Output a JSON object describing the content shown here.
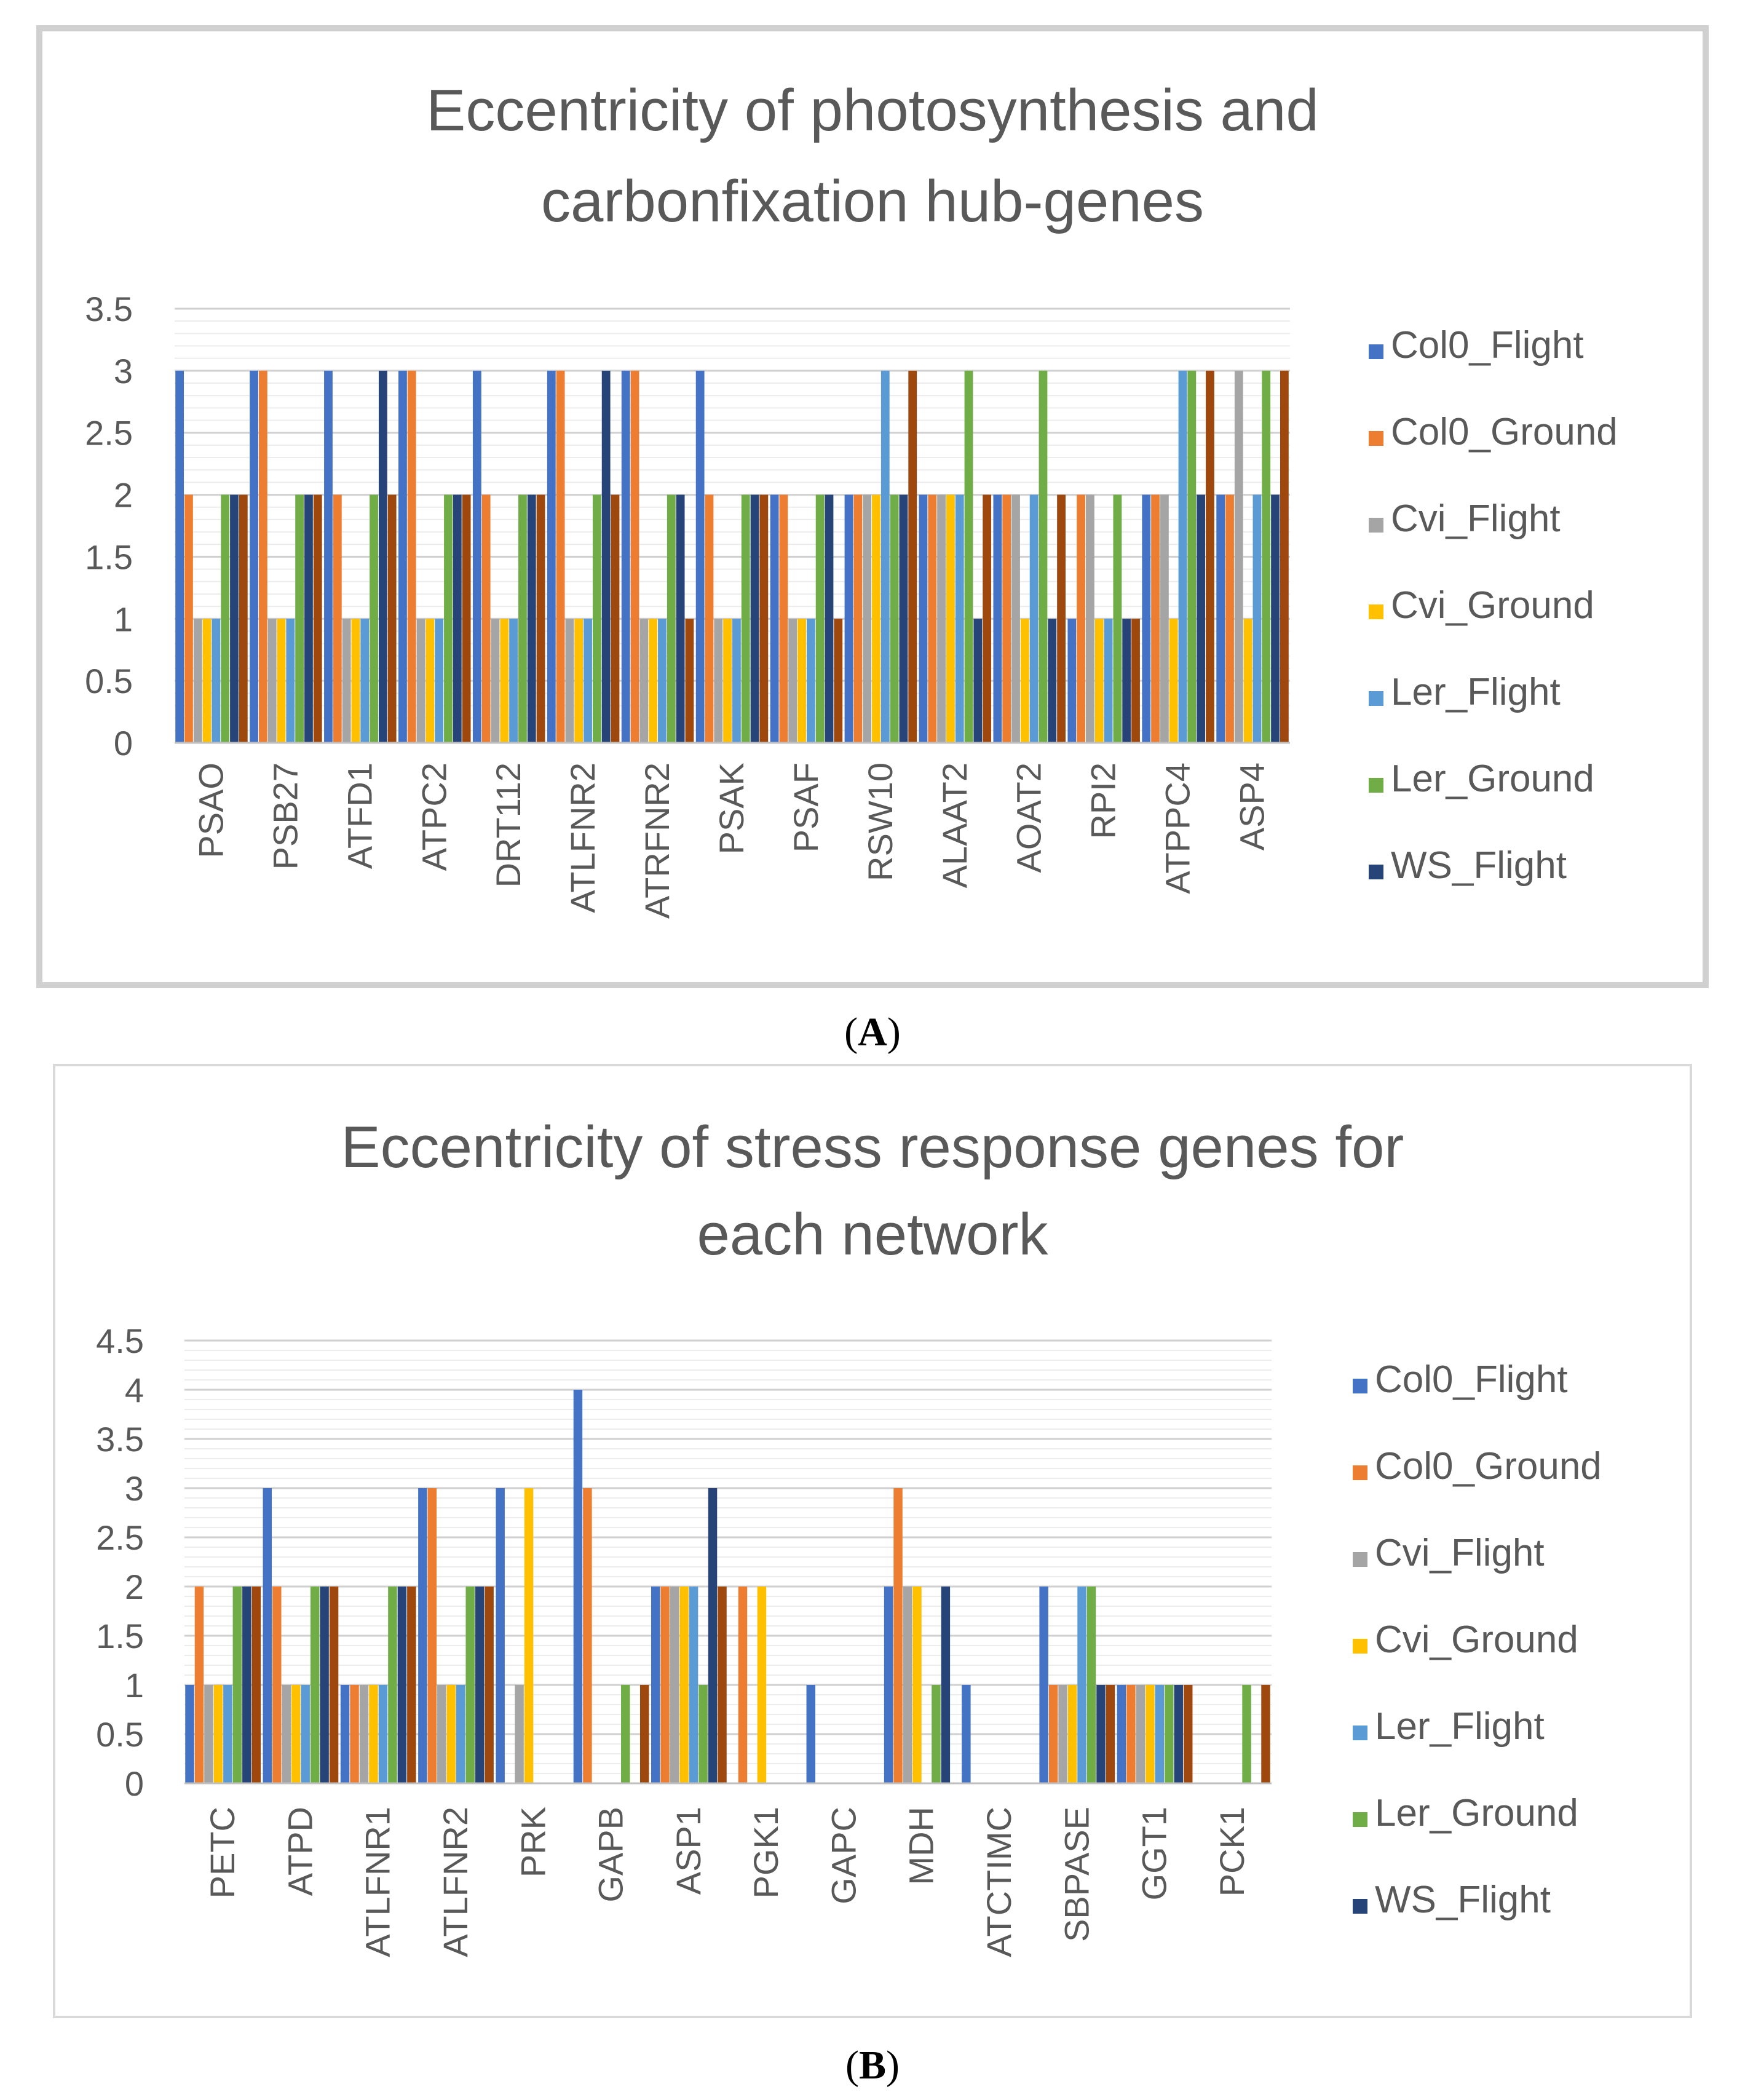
{
  "series_colors": [
    "#4472C4",
    "#ED7D31",
    "#A5A5A5",
    "#FFC000",
    "#5B9BD5",
    "#70AD47",
    "#264478",
    "#9E480E"
  ],
  "chart_data": [
    {
      "type": "bar",
      "panel_label": "A",
      "title_lines": [
        "Eccentricity of photosynthesis and",
        "carbonfixation hub-genes"
      ],
      "xlabel": "",
      "ylabel": "",
      "ylim": [
        0,
        3.5
      ],
      "yticks": [
        "0",
        "0.5",
        "1",
        "1.5",
        "2",
        "2.5",
        "3",
        "3.5"
      ],
      "legend_position": "right",
      "legend": [
        "Col0_Flight",
        "Col0_Ground",
        "Cvi_Flight",
        "Cvi_Ground",
        "Ler_Flight",
        "Ler_Ground",
        "WS_Flight"
      ],
      "categories": [
        "PSAO",
        "PSB27",
        "ATFD1",
        "ATPC2",
        "DRT112",
        "ATLFNR2",
        "ATRFNR2",
        "PSAK",
        "PSAF",
        "RSW10",
        "ALAAT2",
        "AOAT2",
        "RPI2",
        "ATPPC4",
        "ASP4"
      ],
      "series": [
        {
          "name": "Col0_Flight",
          "values": [
            3,
            3,
            3,
            3,
            3,
            3,
            3,
            3,
            2,
            2,
            2,
            2,
            1,
            2,
            2
          ]
        },
        {
          "name": "Col0_Ground",
          "values": [
            2,
            3,
            2,
            3,
            2,
            3,
            3,
            2,
            2,
            2,
            2,
            2,
            2,
            2,
            2
          ]
        },
        {
          "name": "Cvi_Flight",
          "values": [
            1,
            1,
            1,
            1,
            1,
            1,
            1,
            1,
            1,
            2,
            2,
            2,
            2,
            2,
            3
          ]
        },
        {
          "name": "Cvi_Ground",
          "values": [
            1,
            1,
            1,
            1,
            1,
            1,
            1,
            1,
            1,
            2,
            2,
            1,
            1,
            1,
            1
          ]
        },
        {
          "name": "Ler_Flight",
          "values": [
            1,
            1,
            1,
            1,
            1,
            1,
            1,
            1,
            1,
            3,
            2,
            2,
            1,
            3,
            2
          ]
        },
        {
          "name": "Ler_Ground",
          "values": [
            2,
            2,
            2,
            2,
            2,
            2,
            2,
            2,
            2,
            2,
            3,
            3,
            2,
            3,
            3
          ]
        },
        {
          "name": "WS_Flight",
          "values": [
            2,
            2,
            3,
            2,
            2,
            3,
            2,
            2,
            2,
            2,
            1,
            1,
            1,
            2,
            2
          ]
        },
        {
          "name": "",
          "values": [
            2,
            2,
            2,
            2,
            2,
            2,
            1,
            2,
            1,
            3,
            2,
            2,
            1,
            3,
            3
          ]
        }
      ]
    },
    {
      "type": "bar",
      "panel_label": "B",
      "title_lines": [
        "Eccentricity of stress response genes for",
        "each network"
      ],
      "xlabel": "",
      "ylabel": "",
      "ylim": [
        0,
        4.5
      ],
      "yticks": [
        "0",
        "0.5",
        "1",
        "1.5",
        "2",
        "2.5",
        "3",
        "3.5",
        "4",
        "4.5"
      ],
      "legend_position": "right",
      "legend": [
        "Col0_Flight",
        "Col0_Ground",
        "Cvi_Flight",
        "Cvi_Ground",
        "Ler_Flight",
        "Ler_Ground",
        "WS_Flight"
      ],
      "categories": [
        "PETC",
        "ATPD",
        "ATLFNR1",
        "ATLFNR2",
        "PRK",
        "GAPB",
        "ASP1",
        "PGK1",
        "GAPC",
        "MDH",
        "ATCTIMC",
        "SBPASE",
        "GGT1",
        "PCK1"
      ],
      "series": [
        {
          "name": "Col0_Flight",
          "values": [
            1,
            3,
            1,
            3,
            3,
            4,
            2,
            0,
            1,
            2,
            1,
            2,
            1,
            0
          ]
        },
        {
          "name": "Col0_Ground",
          "values": [
            2,
            2,
            1,
            3,
            0,
            3,
            2,
            2,
            0,
            3,
            0,
            1,
            1,
            0
          ]
        },
        {
          "name": "Cvi_Flight",
          "values": [
            1,
            1,
            1,
            1,
            1,
            0,
            2,
            0,
            0,
            2,
            0,
            1,
            1,
            0
          ]
        },
        {
          "name": "Cvi_Ground",
          "values": [
            1,
            1,
            1,
            1,
            3,
            0,
            2,
            2,
            0,
            2,
            0,
            1,
            1,
            0
          ]
        },
        {
          "name": "Ler_Flight",
          "values": [
            1,
            1,
            1,
            1,
            0,
            0,
            2,
            0,
            0,
            0,
            0,
            2,
            1,
            0
          ]
        },
        {
          "name": "Ler_Ground",
          "values": [
            2,
            2,
            2,
            2,
            0,
            1,
            1,
            0,
            0,
            1,
            0,
            2,
            1,
            1
          ]
        },
        {
          "name": "WS_Flight",
          "values": [
            2,
            2,
            2,
            2,
            0,
            0,
            3,
            0,
            0,
            2,
            0,
            1,
            1,
            0
          ]
        },
        {
          "name": "",
          "values": [
            2,
            2,
            2,
            2,
            0,
            1,
            2,
            0,
            0,
            0,
            0,
            1,
            1,
            1
          ]
        }
      ]
    }
  ]
}
